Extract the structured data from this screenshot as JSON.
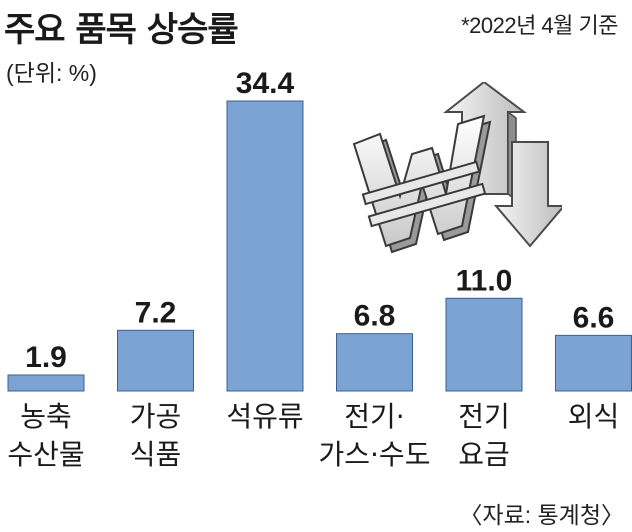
{
  "header": {
    "title": "주요 품목 상승률",
    "note": "*2022년 4월 기준",
    "unit": "(단위: %)"
  },
  "footer": {
    "source": "〈자료: 통계청〉"
  },
  "colors": {
    "bar_fill": "#7ba3d3",
    "bar_stroke": "#3f5f8f",
    "text": "#1a1a1a"
  },
  "chart_data": {
    "type": "bar",
    "categories": [
      [
        "농축",
        "수산물"
      ],
      [
        "가공",
        "식품"
      ],
      [
        "석유류"
      ],
      [
        "전기·",
        "가스·수도"
      ],
      [
        "전기",
        "요금"
      ],
      [
        "외식"
      ]
    ],
    "values": [
      1.9,
      7.2,
      34.4,
      6.8,
      11.0,
      6.6
    ],
    "value_labels": [
      "1.9",
      "7.2",
      "34.4",
      "6.8",
      "11.0",
      "6.6"
    ],
    "ylim": [
      0,
      34.4
    ],
    "grid": false,
    "legend": "none"
  }
}
